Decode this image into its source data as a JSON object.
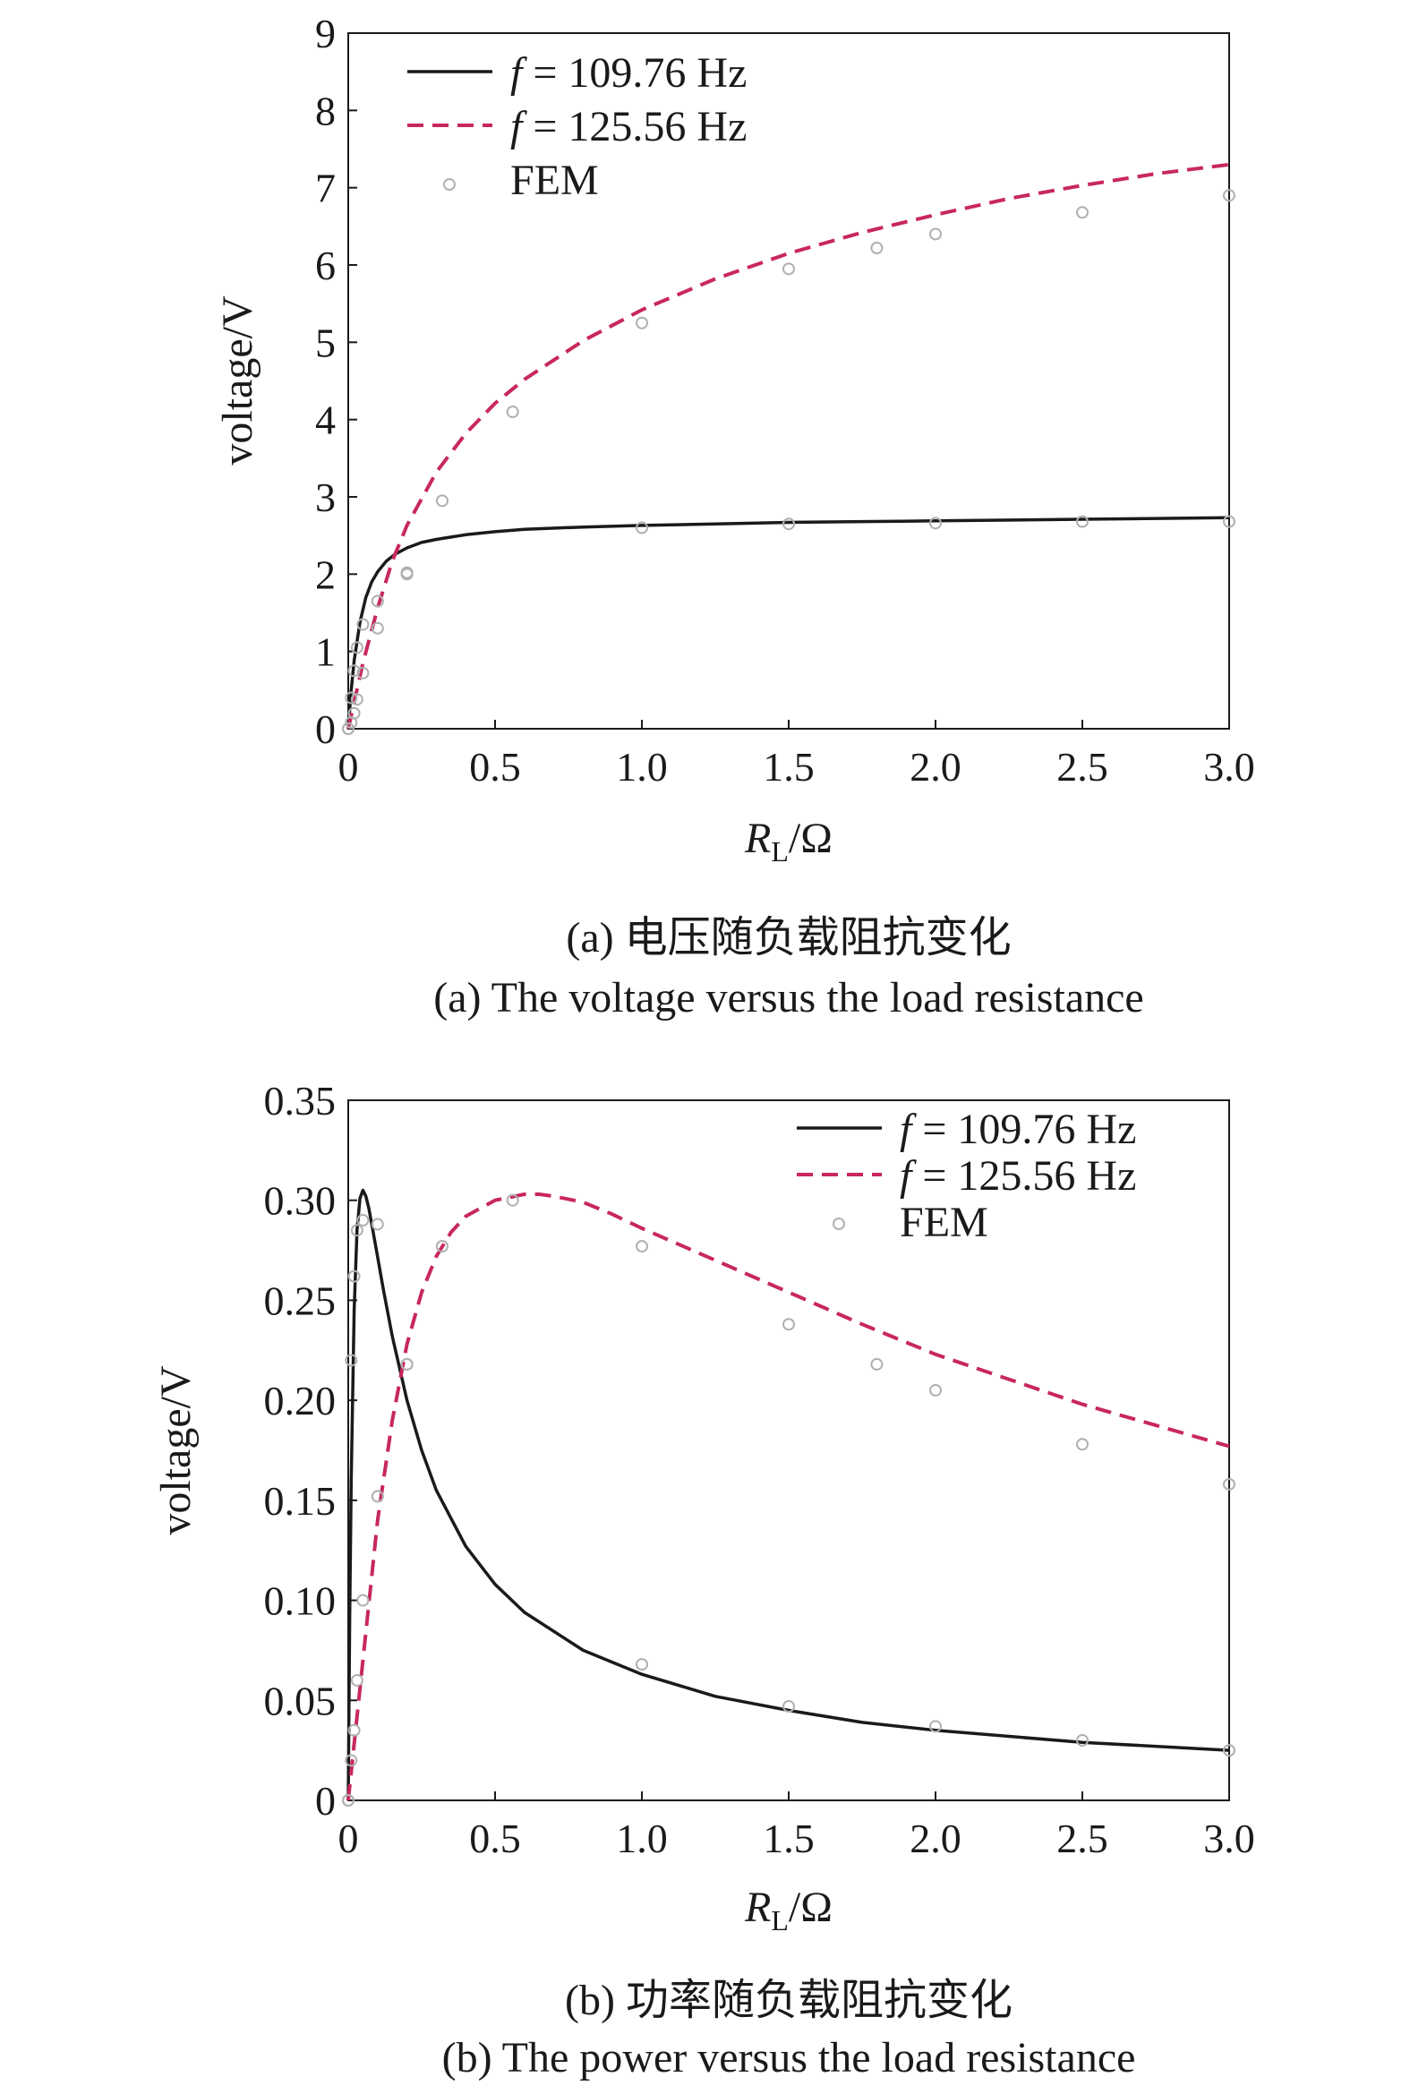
{
  "chart_data": [
    {
      "id": "a",
      "type": "line",
      "xlabel": {
        "main": "R",
        "sub": "L",
        "unit": "/Ω"
      },
      "ylabel": "voltage/V",
      "xlim": [
        0,
        3.0
      ],
      "ylim": [
        0,
        9
      ],
      "xticks": [
        0,
        0.5,
        1.0,
        1.5,
        2.0,
        2.5,
        3.0
      ],
      "xtick_labels": [
        "0",
        "0.5",
        "1.0",
        "1.5",
        "2.0",
        "2.5",
        "3.0"
      ],
      "yticks": [
        0,
        1,
        2,
        3,
        4,
        5,
        6,
        7,
        8,
        9
      ],
      "ytick_labels": [
        "0",
        "1",
        "2",
        "3",
        "4",
        "5",
        "6",
        "7",
        "8",
        "9"
      ],
      "legend_position": "top-left",
      "grid": false,
      "series": [
        {
          "legend_prefix": "f",
          "legend_value": " = 109.76 Hz",
          "style": "solid",
          "color": "#1a1a1a",
          "x": [
            0,
            0.01,
            0.02,
            0.04,
            0.06,
            0.08,
            0.1,
            0.13,
            0.16,
            0.2,
            0.25,
            0.3,
            0.4,
            0.5,
            0.6,
            0.8,
            1.0,
            1.25,
            1.5,
            1.75,
            2.0,
            2.5,
            3.0
          ],
          "y": [
            0,
            0.5,
            0.88,
            1.38,
            1.7,
            1.9,
            2.03,
            2.17,
            2.26,
            2.34,
            2.41,
            2.45,
            2.51,
            2.55,
            2.58,
            2.61,
            2.63,
            2.65,
            2.67,
            2.68,
            2.69,
            2.71,
            2.73
          ]
        },
        {
          "legend_prefix": "f",
          "legend_value": " = 125.56 Hz",
          "style": "dashed",
          "color": "#c8285a",
          "x": [
            0,
            0.05,
            0.1,
            0.15,
            0.2,
            0.3,
            0.4,
            0.5,
            0.6,
            0.8,
            1.0,
            1.25,
            1.5,
            1.75,
            2.0,
            2.25,
            2.5,
            2.75,
            3.0
          ],
          "y": [
            0,
            0.85,
            1.56,
            2.17,
            2.63,
            3.32,
            3.82,
            4.21,
            4.52,
            5.02,
            5.42,
            5.82,
            6.15,
            6.42,
            6.65,
            6.86,
            7.03,
            7.18,
            7.3
          ]
        },
        {
          "legend_value": "FEM",
          "style": "marker",
          "color": "#b0b0b0",
          "x": [
            0,
            0.01,
            0.02,
            0.03,
            0.05,
            0.1,
            0.2,
            0.32,
            0.56,
            1.0,
            1.5,
            1.8,
            2.0,
            2.5,
            3.0,
            0,
            0.01,
            0.02,
            0.03,
            0.05,
            0.1,
            0.2,
            1.0,
            1.5,
            2.0,
            2.5,
            3.0
          ],
          "y": [
            0,
            0.08,
            0.2,
            0.38,
            0.72,
            1.3,
            2.0,
            2.95,
            4.1,
            5.25,
            5.95,
            6.22,
            6.4,
            6.68,
            6.9,
            0,
            0.4,
            0.75,
            1.05,
            1.35,
            1.65,
            2.02,
            2.6,
            2.65,
            2.66,
            2.68,
            2.68
          ]
        }
      ],
      "caption_cn": "(a) 电压随负载阻抗变化",
      "caption_en": "(a) The voltage versus the load resistance"
    },
    {
      "id": "b",
      "type": "line",
      "xlabel": {
        "main": "R",
        "sub": "L",
        "unit": "/Ω"
      },
      "ylabel": "voltage/V",
      "xlim": [
        0,
        3.0
      ],
      "ylim": [
        0,
        0.35
      ],
      "xticks": [
        0,
        0.5,
        1.0,
        1.5,
        2.0,
        2.5,
        3.0
      ],
      "xtick_labels": [
        "0",
        "0.5",
        "1.0",
        "1.5",
        "2.0",
        "2.5",
        "3.0"
      ],
      "yticks": [
        0,
        0.05,
        0.1,
        0.15,
        0.2,
        0.25,
        0.3,
        0.35
      ],
      "ytick_labels": [
        "0",
        "0.05",
        "0.10",
        "0.15",
        "0.20",
        "0.25",
        "0.30",
        "0.35"
      ],
      "legend_position": "top-right",
      "grid": false,
      "series": [
        {
          "legend_prefix": "f",
          "legend_value": " = 109.76 Hz",
          "style": "solid",
          "color": "#1a1a1a",
          "x": [
            0,
            0.005,
            0.01,
            0.02,
            0.03,
            0.04,
            0.05,
            0.06,
            0.07,
            0.09,
            0.12,
            0.15,
            0.2,
            0.25,
            0.3,
            0.4,
            0.5,
            0.6,
            0.8,
            1.0,
            1.25,
            1.5,
            1.75,
            2.0,
            2.5,
            3.0
          ],
          "y": [
            0,
            0.09,
            0.16,
            0.245,
            0.285,
            0.301,
            0.305,
            0.302,
            0.296,
            0.28,
            0.255,
            0.232,
            0.2,
            0.175,
            0.155,
            0.127,
            0.108,
            0.094,
            0.075,
            0.063,
            0.052,
            0.045,
            0.039,
            0.035,
            0.029,
            0.025
          ]
        },
        {
          "legend_prefix": "f",
          "legend_value": " = 125.56 Hz",
          "style": "dashed",
          "color": "#c8285a",
          "x": [
            0,
            0.05,
            0.1,
            0.15,
            0.2,
            0.25,
            0.3,
            0.35,
            0.4,
            0.5,
            0.6,
            0.65,
            0.7,
            0.8,
            0.9,
            1.0,
            1.25,
            1.5,
            1.75,
            2.0,
            2.5,
            3.0
          ],
          "y": [
            0,
            0.07,
            0.14,
            0.19,
            0.228,
            0.254,
            0.272,
            0.284,
            0.292,
            0.3,
            0.303,
            0.303,
            0.302,
            0.299,
            0.293,
            0.286,
            0.27,
            0.254,
            0.238,
            0.223,
            0.198,
            0.177
          ]
        },
        {
          "legend_value": "FEM",
          "style": "marker",
          "color": "#b0b0b0",
          "x": [
            0,
            0.01,
            0.02,
            0.03,
            0.05,
            0.1,
            0.2,
            0.32,
            0.56,
            1.0,
            1.5,
            1.8,
            2.0,
            2.5,
            3.0,
            0,
            0.01,
            0.02,
            0.03,
            0.05,
            0.1,
            0.2,
            1.0,
            1.5,
            2.0,
            2.5,
            3.0
          ],
          "y": [
            0,
            0.02,
            0.035,
            0.06,
            0.1,
            0.152,
            0.218,
            0.277,
            0.3,
            0.277,
            0.238,
            0.218,
            0.205,
            0.178,
            0.158,
            0,
            0.22,
            0.262,
            0.285,
            0.29,
            0.288,
            0.218,
            0.068,
            0.047,
            0.037,
            0.03,
            0.025
          ]
        }
      ],
      "caption_cn": "(b) 功率随负载阻抗变化",
      "caption_en": "(b) The power versus the load resistance"
    }
  ]
}
